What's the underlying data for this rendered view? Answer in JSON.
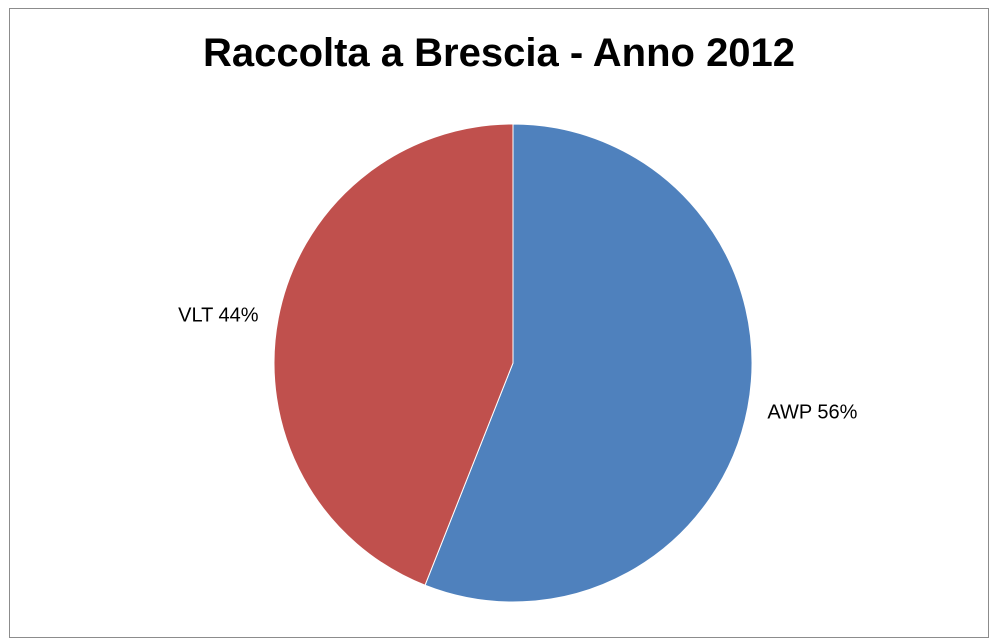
{
  "chart_data": {
    "type": "pie",
    "title": "Raccolta a Brescia - Anno 2012",
    "categories": [
      "AWP",
      "VLT"
    ],
    "values": [
      56,
      44
    ],
    "labels": [
      "AWP 56%",
      "VLT 44%"
    ],
    "colors": [
      "#4F81BD",
      "#C0504D"
    ],
    "start_angle_deg": 0,
    "direction": "clockwise",
    "legend": "none"
  }
}
